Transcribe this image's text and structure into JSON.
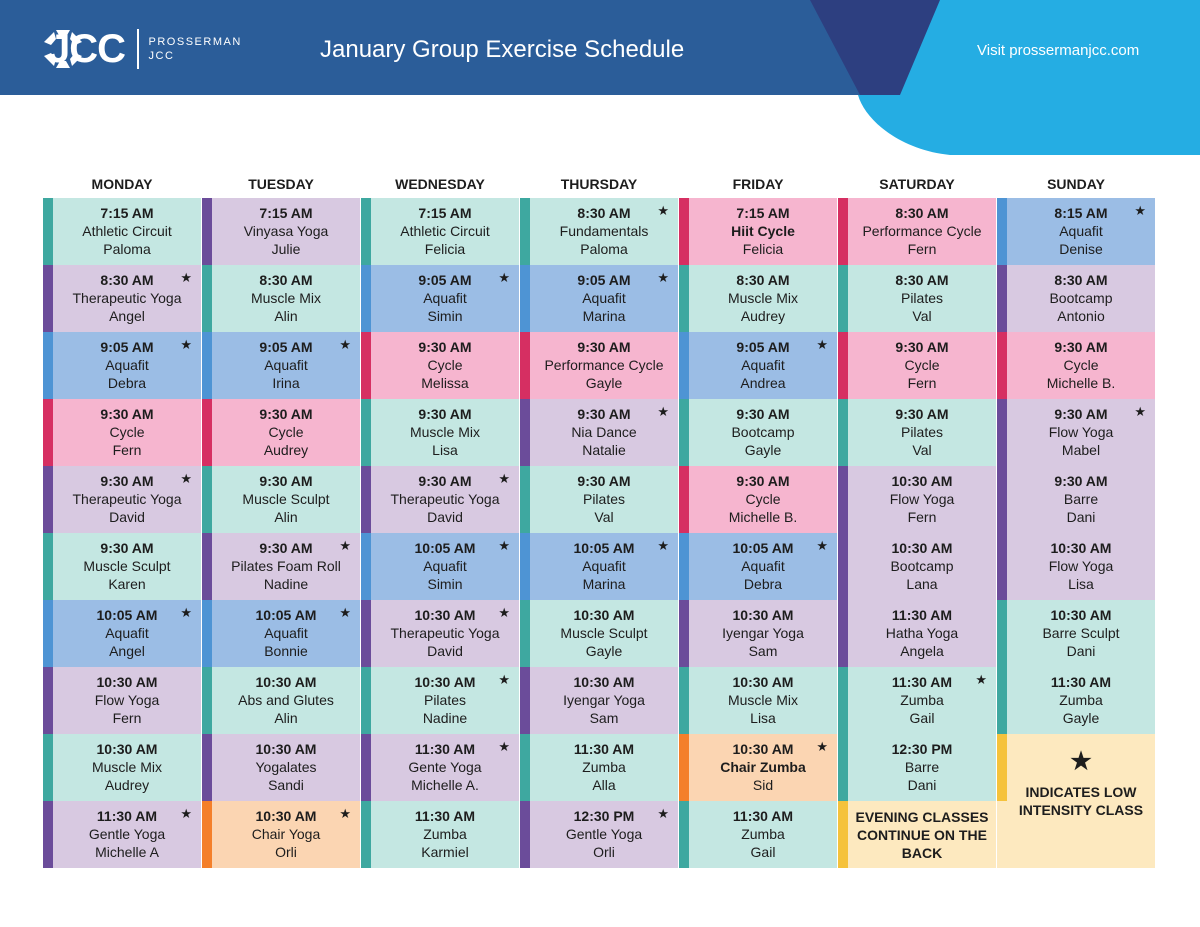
{
  "header": {
    "logo_text": "JCC",
    "logo_sub_1": "PROSSERMAN",
    "logo_sub_2": "JCC",
    "title": "January Group Exercise Schedule",
    "visit": "Visit prossermanjcc.com"
  },
  "colors": {
    "header_dark": "#2b5d99",
    "header_navy": "#2d3f80",
    "header_light": "#25ade3",
    "teal": "#c4e7e2",
    "teal_bar": "#3ea8a0",
    "lavender": "#d8c9e1",
    "lavender_bar": "#6b4c9a",
    "blue": "#9bbde5",
    "blue_bar": "#4e94d4",
    "pink": "#f6b5cf",
    "pink_bar": "#d62f62",
    "peach": "#fbd5b2",
    "peach_bar": "#f47f2a",
    "yellow": "#fde9bf",
    "yellow_bar": "#f5c23b"
  },
  "days": [
    {
      "name": "MONDAY",
      "classes": [
        {
          "time": "7:15 AM",
          "name": "Athletic Circuit",
          "instructor": "Paloma",
          "c": "teal",
          "star": false
        },
        {
          "time": "8:30 AM",
          "name": "Therapeutic Yoga",
          "instructor": "Angel",
          "c": "lavender",
          "star": true
        },
        {
          "time": "9:05 AM",
          "name": "Aquafit",
          "instructor": "Debra",
          "c": "blue",
          "star": true
        },
        {
          "time": "9:30 AM",
          "name": "Cycle",
          "instructor": "Fern",
          "c": "pink",
          "star": false
        },
        {
          "time": "9:30 AM",
          "name": "Therapeutic Yoga",
          "instructor": "David",
          "c": "lavender",
          "star": true
        },
        {
          "time": "9:30 AM",
          "name": "Muscle Sculpt",
          "instructor": "Karen",
          "c": "teal",
          "star": false
        },
        {
          "time": "10:05 AM",
          "name": "Aquafit",
          "instructor": "Angel",
          "c": "blue",
          "star": true
        },
        {
          "time": "10:30 AM",
          "name": "Flow Yoga",
          "instructor": "Fern",
          "c": "lavender",
          "star": false
        },
        {
          "time": "10:30 AM",
          "name": "Muscle Mix",
          "instructor": "Audrey",
          "c": "teal",
          "star": false
        },
        {
          "time": "11:30 AM",
          "name": "Gentle Yoga",
          "instructor": "Michelle A",
          "c": "lavender",
          "star": true
        }
      ]
    },
    {
      "name": "TUESDAY",
      "classes": [
        {
          "time": "7:15 AM",
          "name": "Vinyasa Yoga",
          "instructor": "Julie",
          "c": "lavender",
          "star": false
        },
        {
          "time": "8:30 AM",
          "name": "Muscle Mix",
          "instructor": "Alin",
          "c": "teal",
          "star": false
        },
        {
          "time": "9:05 AM",
          "name": "Aquafit",
          "instructor": "Irina",
          "c": "blue",
          "star": true
        },
        {
          "time": "9:30 AM",
          "name": "Cycle",
          "instructor": "Audrey",
          "c": "pink",
          "star": false
        },
        {
          "time": "9:30 AM",
          "name": "Muscle Sculpt",
          "instructor": "Alin",
          "c": "teal",
          "star": false
        },
        {
          "time": "9:30 AM",
          "name": "Pilates Foam Roll",
          "instructor": "Nadine",
          "c": "lavender",
          "star": true
        },
        {
          "time": "10:05 AM",
          "name": "Aquafit",
          "instructor": "Bonnie",
          "c": "blue",
          "star": true
        },
        {
          "time": "10:30 AM",
          "name": "Abs and Glutes",
          "instructor": "Alin",
          "c": "teal",
          "star": false
        },
        {
          "time": "10:30 AM",
          "name": "Yogalates",
          "instructor": "Sandi",
          "c": "lavender",
          "star": false
        },
        {
          "time": "10:30 AM",
          "name": "Chair Yoga",
          "instructor": "Orli",
          "c": "peach",
          "star": true
        }
      ]
    },
    {
      "name": "WEDNESDAY",
      "classes": [
        {
          "time": "7:15 AM",
          "name": "Athletic Circuit",
          "instructor": "Felicia",
          "c": "teal",
          "star": false
        },
        {
          "time": "9:05 AM",
          "name": "Aquafit",
          "instructor": "Simin",
          "c": "blue",
          "star": true
        },
        {
          "time": "9:30 AM",
          "name": "Cycle",
          "instructor": "Melissa",
          "c": "pink",
          "star": false
        },
        {
          "time": "9:30 AM",
          "name": "Muscle Mix",
          "instructor": "Lisa",
          "c": "teal",
          "star": false
        },
        {
          "time": "9:30 AM",
          "name": "Therapeutic Yoga",
          "instructor": "David",
          "c": "lavender",
          "star": true
        },
        {
          "time": "10:05 AM",
          "name": "Aquafit",
          "instructor": "Simin",
          "c": "blue",
          "star": true
        },
        {
          "time": "10:30 AM",
          "name": "Therapeutic Yoga",
          "instructor": "David",
          "c": "lavender",
          "star": true
        },
        {
          "time": "10:30 AM",
          "name": "Pilates",
          "instructor": "Nadine",
          "c": "teal",
          "star": true
        },
        {
          "time": "11:30 AM",
          "name": "Gente Yoga",
          "instructor": "Michelle A.",
          "c": "lavender",
          "star": true
        },
        {
          "time": "11:30 AM",
          "name": "Zumba",
          "instructor": "Karmiel",
          "c": "teal",
          "star": false
        }
      ]
    },
    {
      "name": "THURSDAY",
      "classes": [
        {
          "time": "8:30 AM",
          "name": "Fundamentals",
          "instructor": "Paloma",
          "c": "teal",
          "star": true
        },
        {
          "time": "9:05 AM",
          "name": "Aquafit",
          "instructor": "Marina",
          "c": "blue",
          "star": true
        },
        {
          "time": "9:30 AM",
          "name": "Performance Cycle",
          "instructor": "Gayle",
          "c": "pink",
          "star": false
        },
        {
          "time": "9:30 AM",
          "name": "Nia Dance",
          "instructor": "Natalie",
          "c": "lavender",
          "star": true
        },
        {
          "time": "9:30 AM",
          "name": "Pilates",
          "instructor": "Val",
          "c": "teal",
          "star": false
        },
        {
          "time": "10:05 AM",
          "name": "Aquafit",
          "instructor": "Marina",
          "c": "blue",
          "star": true
        },
        {
          "time": "10:30 AM",
          "name": "Muscle Sculpt",
          "instructor": "Gayle",
          "c": "teal",
          "star": false
        },
        {
          "time": "10:30 AM",
          "name": "Iyengar Yoga",
          "instructor": "Sam",
          "c": "lavender",
          "star": false
        },
        {
          "time": "11:30 AM",
          "name": "Zumba",
          "instructor": "Alla",
          "c": "teal",
          "star": false
        },
        {
          "time": "12:30 PM",
          "name": "Gentle Yoga",
          "instructor": "Orli",
          "c": "lavender",
          "star": true
        }
      ]
    },
    {
      "name": "FRIDAY",
      "classes": [
        {
          "time": "7:15 AM",
          "name": "Hiit Cycle",
          "instructor": "Felicia",
          "c": "pink",
          "star": false,
          "bold": true
        },
        {
          "time": "8:30 AM",
          "name": "Muscle Mix",
          "instructor": "Audrey",
          "c": "teal",
          "star": false
        },
        {
          "time": "9:05 AM",
          "name": "Aquafit",
          "instructor": "Andrea",
          "c": "blue",
          "star": true
        },
        {
          "time": "9:30 AM",
          "name": "Bootcamp",
          "instructor": "Gayle",
          "c": "teal",
          "star": false
        },
        {
          "time": "9:30 AM",
          "name": "Cycle",
          "instructor": "Michelle B.",
          "c": "pink",
          "star": false
        },
        {
          "time": "10:05 AM",
          "name": "Aquafit",
          "instructor": "Debra",
          "c": "blue",
          "star": true
        },
        {
          "time": "10:30 AM",
          "name": "Iyengar Yoga",
          "instructor": "Sam",
          "c": "lavender",
          "star": false
        },
        {
          "time": "10:30 AM",
          "name": "Muscle Mix",
          "instructor": "Lisa",
          "c": "teal",
          "star": false
        },
        {
          "time": "10:30 AM",
          "name": "Chair Zumba",
          "instructor": "Sid",
          "c": "peach",
          "star": true,
          "bold": true
        },
        {
          "time": "11:30 AM",
          "name": "Zumba",
          "instructor": "Gail",
          "c": "teal",
          "star": false
        }
      ]
    },
    {
      "name": "SATURDAY",
      "classes": [
        {
          "time": "8:30 AM",
          "name": "Performance Cycle",
          "instructor": "Fern",
          "c": "pink",
          "star": false
        },
        {
          "time": "8:30 AM",
          "name": "Pilates",
          "instructor": "Val",
          "c": "teal",
          "star": false
        },
        {
          "time": "9:30 AM",
          "name": "Cycle",
          "instructor": "Fern",
          "c": "pink",
          "star": false
        },
        {
          "time": "9:30 AM",
          "name": "Pilates",
          "instructor": "Val",
          "c": "teal",
          "star": false
        },
        {
          "time": "10:30 AM",
          "name": "Flow Yoga",
          "instructor": "Fern",
          "c": "lavender",
          "star": false
        },
        {
          "time": "10:30 AM",
          "name": "Bootcamp",
          "instructor": "Lana",
          "c": "lavender",
          "star": false
        },
        {
          "time": "11:30 AM",
          "name": "Hatha Yoga",
          "instructor": "Angela",
          "c": "lavender",
          "star": false
        },
        {
          "time": "11:30 AM",
          "name": "Zumba",
          "instructor": "Gail",
          "c": "teal",
          "star": true
        },
        {
          "time": "12:30 PM",
          "name": "Barre",
          "instructor": "Dani",
          "c": "teal",
          "star": false
        }
      ],
      "note": "EVENING CLASSES CONTINUE ON THE BACK"
    },
    {
      "name": "SUNDAY",
      "classes": [
        {
          "time": "8:15 AM",
          "name": "Aquafit",
          "instructor": "Denise",
          "c": "blue",
          "star": true
        },
        {
          "time": "8:30 AM",
          "name": "Bootcamp",
          "instructor": "Antonio",
          "c": "lavender",
          "star": false
        },
        {
          "time": "9:30 AM",
          "name": "Cycle",
          "instructor": "Michelle B.",
          "c": "pink",
          "star": false
        },
        {
          "time": "9:30 AM",
          "name": "Flow Yoga",
          "instructor": "Mabel",
          "c": "lavender",
          "star": true
        },
        {
          "time": "9:30 AM",
          "name": "Barre",
          "instructor": "Dani",
          "c": "lavender",
          "star": false
        },
        {
          "time": "10:30 AM",
          "name": "Flow Yoga",
          "instructor": "Lisa",
          "c": "lavender",
          "star": false
        },
        {
          "time": "10:30 AM",
          "name": "Barre Sculpt",
          "instructor": "Dani",
          "c": "teal",
          "star": false
        },
        {
          "time": "11:30 AM",
          "name": "Zumba",
          "instructor": "Gayle",
          "c": "teal",
          "star": false
        }
      ],
      "note": "INDICATES LOW INTENSITY CLASS"
    }
  ],
  "star_symbol": "★"
}
